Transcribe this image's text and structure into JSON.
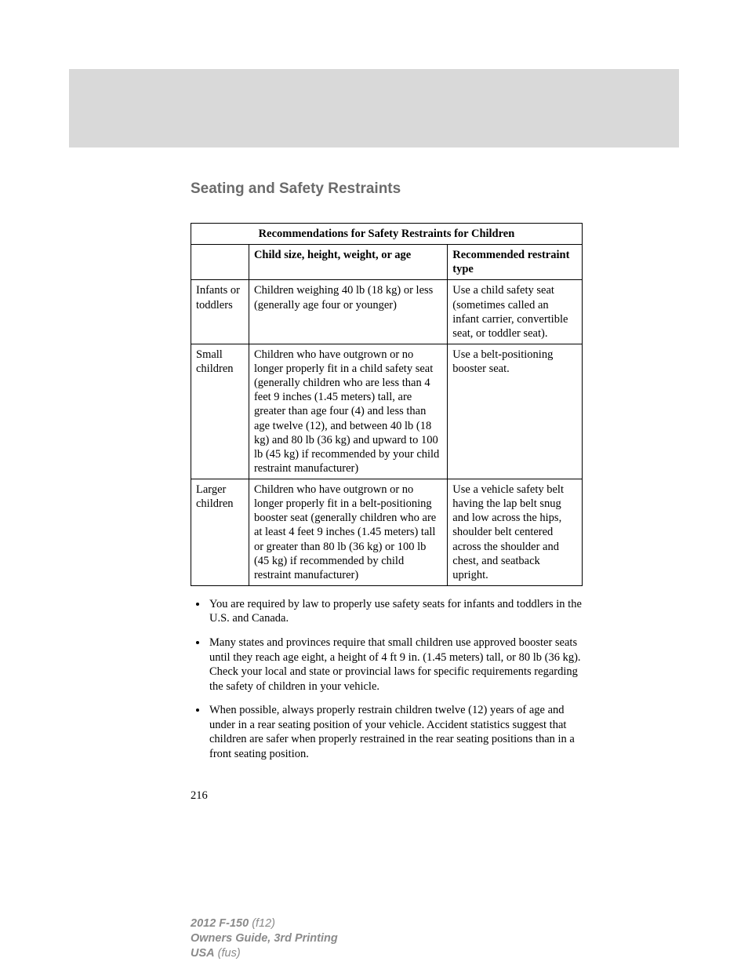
{
  "section_title": "Seating and Safety Restraints",
  "table": {
    "caption": "Recommendations for Safety Restraints for Children",
    "head": {
      "col1": "",
      "col2": "Child size, height, weight, or age",
      "col3": "Recommended restraint type"
    },
    "rows": [
      {
        "category": "Infants or toddlers",
        "desc": "Children weighing 40 lb (18 kg) or less (generally age four or younger)",
        "rec": "Use a child safety seat (sometimes called an infant carrier, convertible seat, or toddler seat)."
      },
      {
        "category": "Small children",
        "desc": "Children who have outgrown or no longer properly fit in a child safety seat (generally children who are less than 4 feet 9 inches (1.45 meters) tall, are greater than age four (4) and less than age twelve (12), and between 40 lb (18 kg) and 80 lb (36 kg) and upward to 100 lb (45 kg) if recommended by your child restraint manufacturer)",
        "rec": "Use a belt-positioning booster seat."
      },
      {
        "category": "Larger children",
        "desc": "Children who have outgrown or no longer properly fit in a belt-positioning booster seat (generally children who are at least 4 feet 9 inches (1.45 meters) tall or greater than 80 lb (36 kg) or 100 lb (45 kg) if recommended by child restraint manufacturer)",
        "rec": "Use a vehicle safety belt having the lap belt snug and low across the hips, shoulder belt centered across the shoulder and chest, and seatback upright."
      }
    ]
  },
  "bullets": [
    "You are required by law to properly use safety seats for infants and toddlers in the U.S. and Canada.",
    "Many states and provinces require that small children use approved booster seats until they reach age eight, a height of 4 ft 9 in. (1.45 meters) tall, or 80 lb (36 kg). Check your local and state or provincial laws for specific requirements regarding the safety of children in your vehicle.",
    "When possible, always properly restrain children twelve (12) years of age and under in a rear seating position of your vehicle. Accident statistics suggest that children are safer when properly restrained in the rear seating positions than in a front seating position."
  ],
  "page_number": "216",
  "footer": {
    "line1_bold": "2012 F-150",
    "line1_rest": " (f12)",
    "line2": "Owners Guide, 3rd Printing",
    "line3_bold": "USA",
    "line3_rest": " (fus)"
  }
}
